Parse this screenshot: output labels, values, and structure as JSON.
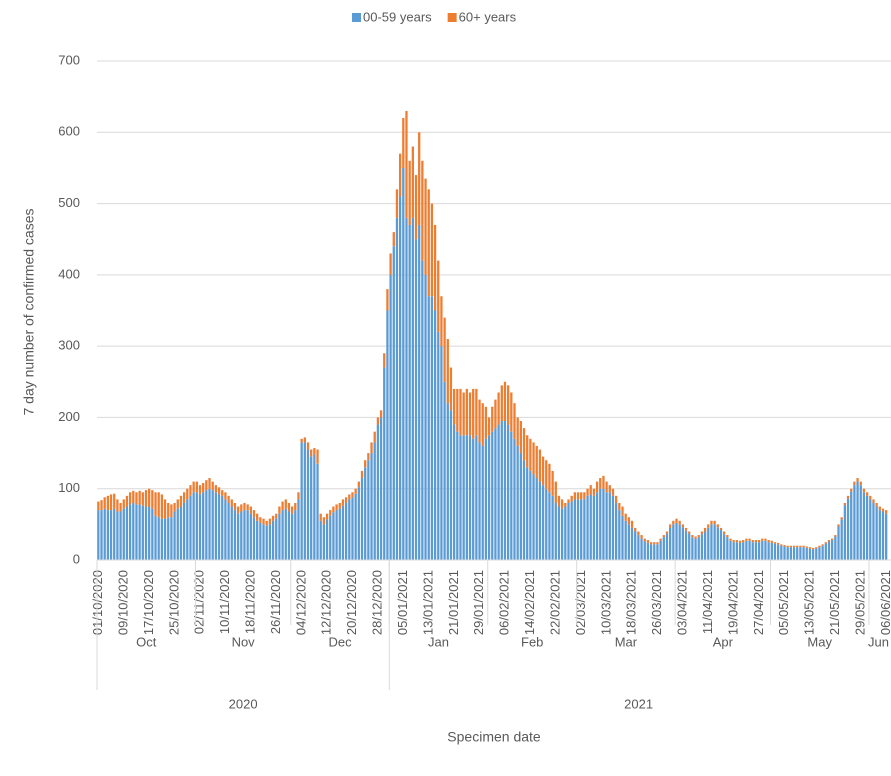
{
  "chart_data": {
    "type": "stacked_bar",
    "y_label": "7 day number of confirmed cases",
    "x_label": "Specimen date",
    "legend": "top",
    "ylim": [
      0,
      700
    ],
    "yticks": [
      0,
      100,
      200,
      300,
      400,
      500,
      600,
      700
    ],
    "grid": true,
    "months": [
      "Oct",
      "Nov",
      "Dec",
      "Jan",
      "Feb",
      "Mar",
      "Apr",
      "May",
      "Jun"
    ],
    "years": [
      "2020",
      "2021"
    ],
    "categories": [
      "01/10/2020",
      null,
      null,
      null,
      null,
      null,
      null,
      null,
      "09/10/2020",
      null,
      null,
      null,
      null,
      null,
      null,
      null,
      "17/10/2020",
      null,
      null,
      null,
      null,
      null,
      null,
      null,
      "25/10/2020",
      null,
      null,
      null,
      null,
      null,
      null,
      null,
      "02/11/2020",
      null,
      null,
      null,
      null,
      null,
      null,
      null,
      "10/11/2020",
      null,
      null,
      null,
      null,
      null,
      null,
      null,
      "18/11/2020",
      null,
      null,
      null,
      null,
      null,
      null,
      null,
      "26/11/2020",
      null,
      null,
      null,
      null,
      null,
      null,
      null,
      "04/12/2020",
      null,
      null,
      null,
      null,
      null,
      null,
      null,
      "12/12/2020",
      null,
      null,
      null,
      null,
      null,
      null,
      null,
      "20/12/2020",
      null,
      null,
      null,
      null,
      null,
      null,
      null,
      "28/12/2020",
      null,
      null,
      null,
      null,
      null,
      null,
      null,
      "05/01/2021",
      null,
      null,
      null,
      null,
      null,
      null,
      null,
      "13/01/2021",
      null,
      null,
      null,
      null,
      null,
      null,
      null,
      "21/01/2021",
      null,
      null,
      null,
      null,
      null,
      null,
      null,
      "29/01/2021",
      null,
      null,
      null,
      null,
      null,
      null,
      null,
      "06/02/2021",
      null,
      null,
      null,
      null,
      null,
      null,
      null,
      "14/02/2021",
      null,
      null,
      null,
      null,
      null,
      null,
      null,
      "22/02/2021",
      null,
      null,
      null,
      null,
      null,
      null,
      null,
      "02/03/2021",
      null,
      null,
      null,
      null,
      null,
      null,
      null,
      "10/03/2021",
      null,
      null,
      null,
      null,
      null,
      null,
      null,
      "18/03/2021",
      null,
      null,
      null,
      null,
      null,
      null,
      null,
      "26/03/2021",
      null,
      null,
      null,
      null,
      null,
      null,
      null,
      "03/04/2021",
      null,
      null,
      null,
      null,
      null,
      null,
      null,
      "11/04/2021",
      null,
      null,
      null,
      null,
      null,
      null,
      null,
      "19/04/2021",
      null,
      null,
      null,
      null,
      null,
      null,
      null,
      "27/04/2021",
      null,
      null,
      null,
      null,
      null,
      null,
      null,
      "05/05/2021",
      null,
      null,
      null,
      null,
      null,
      null,
      null,
      "13/05/2021",
      null,
      null,
      null,
      null,
      null,
      null,
      null,
      "21/05/2021",
      null,
      null,
      null,
      null,
      null,
      null,
      null,
      "29/05/2021",
      null,
      null,
      null,
      null,
      null,
      null,
      null,
      "06/06/2021"
    ],
    "series": [
      {
        "name": "00-59 years",
        "color": "#5b9bd5",
        "values": [
          70,
          70,
          72,
          70,
          70,
          72,
          68,
          68,
          72,
          75,
          78,
          80,
          78,
          78,
          76,
          75,
          75,
          72,
          62,
          60,
          58,
          58,
          60,
          60,
          68,
          72,
          75,
          80,
          85,
          90,
          95,
          95,
          92,
          95,
          98,
          100,
          98,
          95,
          92,
          90,
          85,
          80,
          75,
          70,
          65,
          68,
          70,
          70,
          65,
          60,
          55,
          52,
          50,
          48,
          50,
          55,
          58,
          65,
          70,
          72,
          68,
          65,
          70,
          85,
          165,
          165,
          155,
          145,
          148,
          135,
          55,
          50,
          57,
          62,
          67,
          70,
          72,
          76,
          80,
          85,
          88,
          93,
          102,
          115,
          130,
          140,
          150,
          165,
          190,
          200,
          270,
          350,
          400,
          440,
          480,
          510,
          550,
          480,
          470,
          480,
          450,
          470,
          420,
          400,
          370,
          370,
          350,
          320,
          300,
          250,
          220,
          210,
          190,
          180,
          175,
          175,
          175,
          175,
          170,
          175,
          165,
          160,
          170,
          175,
          180,
          185,
          190,
          195,
          195,
          190,
          180,
          170,
          160,
          150,
          140,
          130,
          125,
          120,
          115,
          110,
          105,
          100,
          95,
          90,
          80,
          75,
          72,
          75,
          80,
          82,
          85,
          85,
          85,
          85,
          90,
          92,
          90,
          95,
          100,
          100,
          95,
          95,
          90,
          80,
          70,
          62,
          55,
          50,
          45,
          40,
          35,
          30,
          26,
          24,
          22,
          22,
          22,
          27,
          32,
          37,
          45,
          50,
          52,
          50,
          46,
          41,
          37,
          32,
          30,
          32,
          36,
          40,
          45,
          50,
          50,
          46,
          42,
          36,
          32,
          27,
          25,
          25,
          24,
          25,
          27,
          27,
          25,
          25,
          25,
          27,
          27,
          25,
          24,
          23,
          22,
          20,
          19,
          18,
          18,
          18,
          18,
          18,
          18,
          17,
          16,
          15,
          16,
          18,
          20,
          23,
          26,
          28,
          33,
          47,
          57,
          77,
          86,
          96,
          105,
          110,
          105,
          95,
          90,
          85,
          80,
          75,
          70,
          68,
          65
        ]
      },
      {
        "name": "60+ years",
        "color": "#ed7d31",
        "values": [
          12,
          14,
          16,
          20,
          22,
          21,
          17,
          12,
          13,
          15,
          17,
          17,
          17,
          19,
          19,
          23,
          25,
          26,
          33,
          35,
          34,
          27,
          20,
          18,
          12,
          13,
          15,
          15,
          15,
          15,
          15,
          15,
          13,
          13,
          14,
          15,
          12,
          10,
          10,
          8,
          10,
          10,
          10,
          10,
          10,
          10,
          10,
          8,
          10,
          10,
          10,
          8,
          8,
          7,
          8,
          7,
          7,
          10,
          12,
          13,
          12,
          10,
          10,
          10,
          5,
          7,
          10,
          10,
          9,
          20,
          10,
          10,
          8,
          8,
          8,
          8,
          8,
          9,
          8,
          7,
          7,
          7,
          8,
          10,
          10,
          10,
          15,
          15,
          10,
          10,
          20,
          30,
          30,
          20,
          40,
          60,
          70,
          150,
          90,
          100,
          90,
          130,
          140,
          135,
          150,
          130,
          120,
          100,
          70,
          90,
          90,
          60,
          50,
          60,
          65,
          60,
          65,
          60,
          70,
          65,
          60,
          60,
          45,
          25,
          35,
          40,
          45,
          50,
          55,
          55,
          55,
          50,
          40,
          45,
          45,
          45,
          45,
          45,
          45,
          45,
          40,
          40,
          40,
          35,
          30,
          15,
          13,
          5,
          5,
          8,
          10,
          10,
          10,
          10,
          10,
          13,
          10,
          15,
          15,
          18,
          15,
          10,
          10,
          10,
          10,
          13,
          10,
          10,
          10,
          5,
          5,
          5,
          4,
          4,
          3,
          3,
          3,
          3,
          3,
          3,
          5,
          5,
          6,
          5,
          4,
          4,
          3,
          3,
          3,
          3,
          4,
          5,
          5,
          5,
          5,
          4,
          3,
          4,
          3,
          3,
          3,
          3,
          3,
          3,
          3,
          3,
          3,
          3,
          3,
          3,
          3,
          3,
          3,
          2,
          2,
          2,
          2,
          2,
          2,
          2,
          2,
          2,
          2,
          2,
          2,
          2,
          2,
          2,
          2,
          2,
          2,
          2,
          2,
          3,
          3,
          3,
          4,
          4,
          5,
          5,
          5,
          5,
          5,
          5,
          5,
          5,
          5,
          4,
          5
        ]
      }
    ]
  }
}
